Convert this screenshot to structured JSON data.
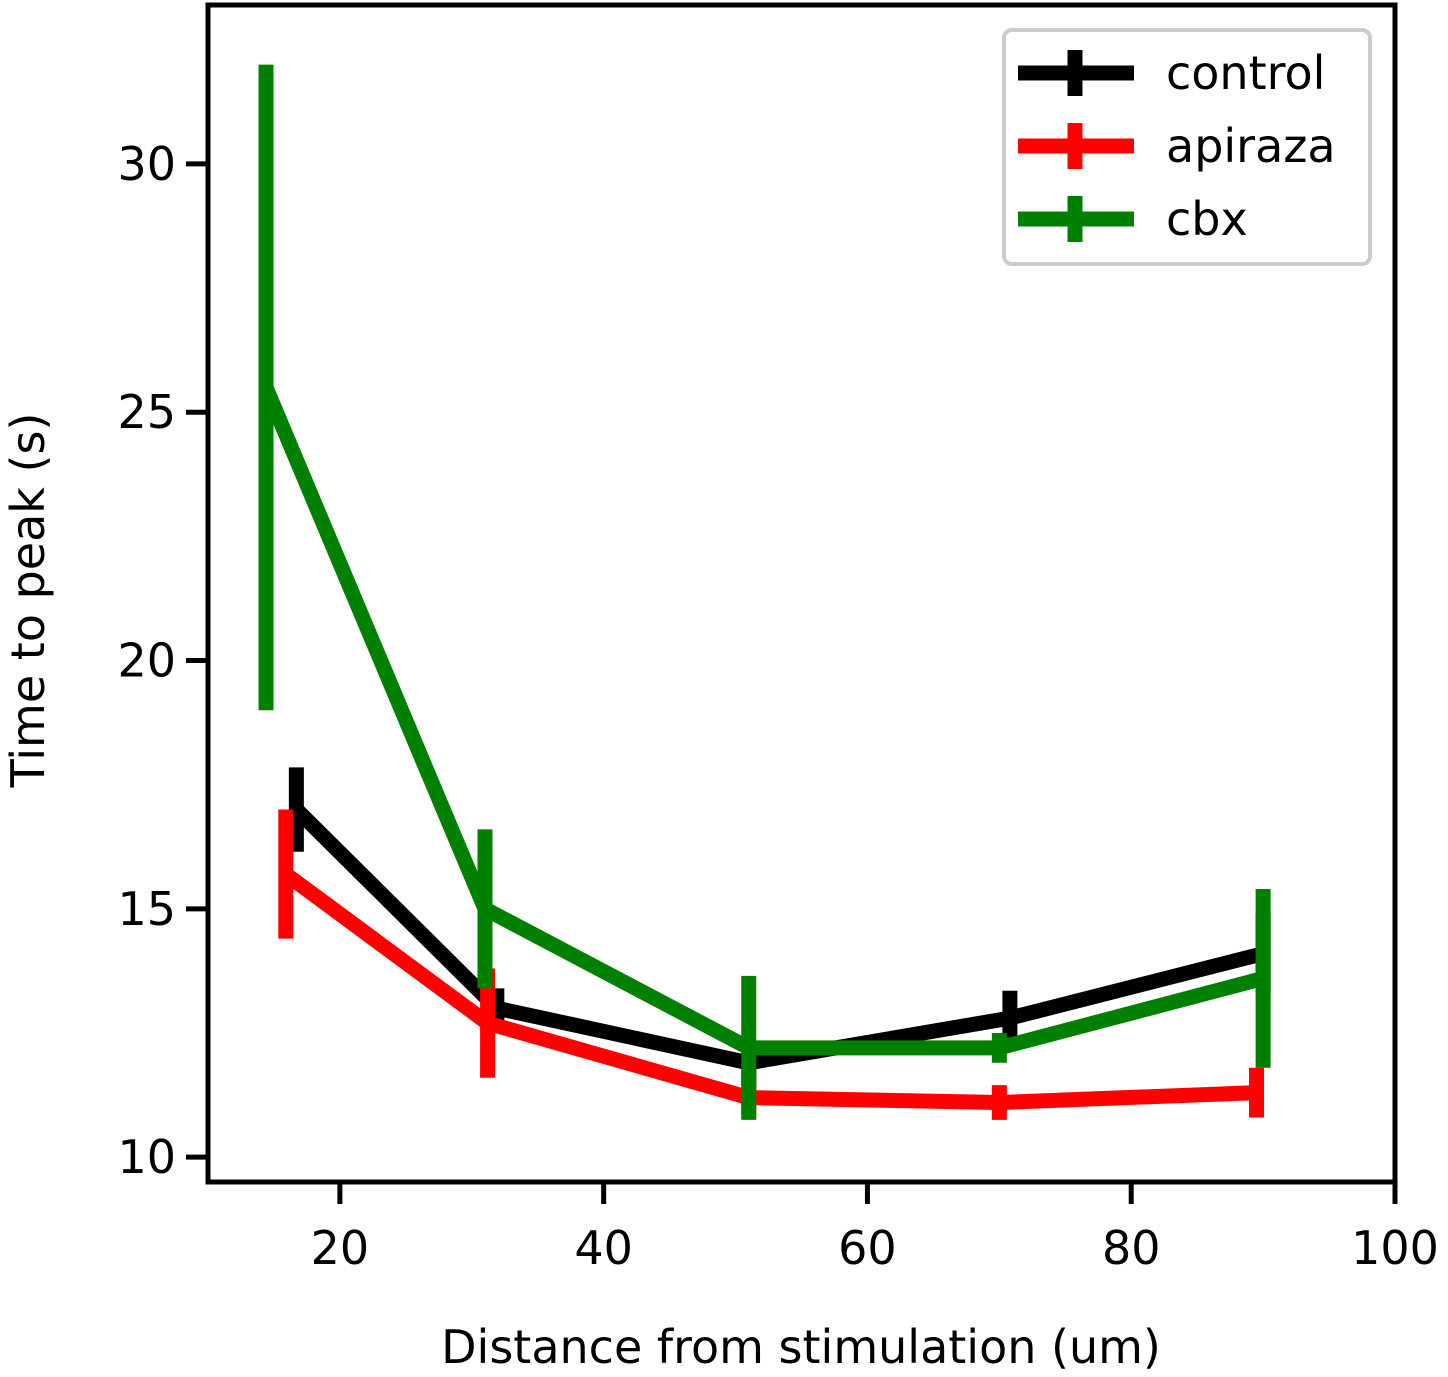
{
  "chart_data": {
    "type": "line",
    "title": "",
    "xlabel": "Distance from stimulation (um)",
    "ylabel": "Time to peak (s)",
    "xlim": [
      10,
      100
    ],
    "ylim": [
      9.5,
      33.2
    ],
    "x_ticks": [
      20,
      40,
      60,
      80,
      100
    ],
    "y_ticks": [
      10,
      15,
      20,
      25,
      30
    ],
    "grid": false,
    "legend_position": "top-right",
    "series": [
      {
        "name": "control",
        "color": "#000000",
        "x": [
          16.7,
          31.9,
          51.0,
          70.8,
          90.0
        ],
        "y": [
          17.0,
          13.0,
          11.9,
          12.8,
          14.1
        ],
        "err": [
          0.85,
          0.4,
          0.45,
          0.55,
          0.8
        ]
      },
      {
        "name": "apiraza",
        "color": "#ff0000",
        "x": [
          15.9,
          31.2,
          51.0,
          70.0,
          89.5
        ],
        "y": [
          15.7,
          12.7,
          11.2,
          11.1,
          11.3
        ],
        "err": [
          1.3,
          1.1,
          0.35,
          0.35,
          0.5
        ]
      },
      {
        "name": "cbx",
        "color": "#008000",
        "x": [
          14.4,
          31.0,
          51.0,
          70.0,
          90.0
        ],
        "y": [
          25.5,
          15.0,
          12.2,
          12.2,
          13.6
        ],
        "err": [
          6.5,
          1.6,
          1.45,
          0.3,
          1.8
        ]
      }
    ]
  }
}
